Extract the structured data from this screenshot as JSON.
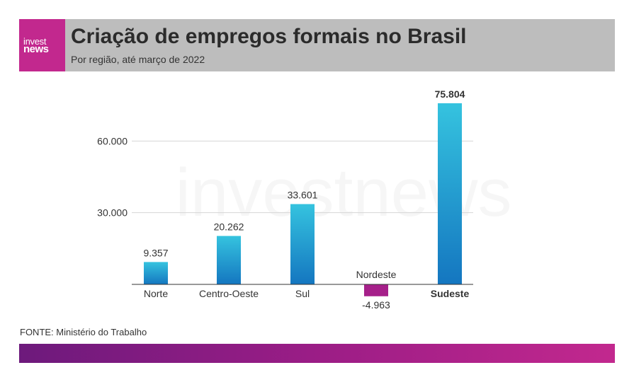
{
  "header": {
    "logo_top": "invest",
    "logo_bottom": "news",
    "title": "Criação de empregos formais no Brasil",
    "subtitle": "Por região, até março de 2022"
  },
  "watermark": "investnews",
  "source": "FONTE: Ministério do Trabalho",
  "colors": {
    "header_bg": "#bdbdbd",
    "brand_magenta": "#c2288e",
    "positive_bar_top": "#35c3df",
    "positive_bar_bottom": "#1476c0",
    "negative_bar": "#a6208a",
    "footer_start": "#6d1a7c",
    "footer_end": "#c2288e"
  },
  "chart_data": {
    "type": "bar",
    "title": "Criação de empregos formais no Brasil",
    "subtitle": "Por região, até março de 2022",
    "categories": [
      "Norte",
      "Centro-Oeste",
      "Sul",
      "Nordeste",
      "Sudeste"
    ],
    "values": [
      9357,
      20262,
      33601,
      -4963,
      75804
    ],
    "value_labels": [
      "9.357",
      "20.262",
      "33.601",
      "-4.963",
      "75.804"
    ],
    "highlighted_category": "Sudeste",
    "yticks": [
      30000,
      60000
    ],
    "ytick_labels": [
      "30.000",
      "60.000"
    ],
    "ylim": [
      -4963,
      75804
    ],
    "grid": true,
    "xlabel": "",
    "ylabel": ""
  }
}
